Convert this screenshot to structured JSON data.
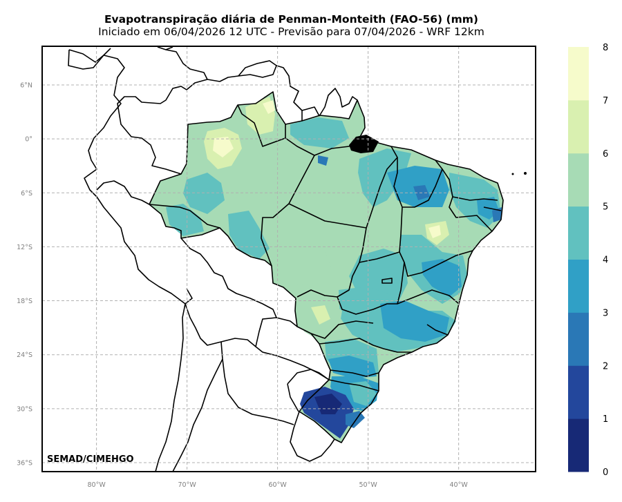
{
  "title": "Evapotranspiração diária de Penman-Monteith (FAO-56) (mm)",
  "subtitle": "Iniciado em 06/04/2026 12 UTC - Previsão para 07/04/2026 - WRF 12km",
  "credit": "SEMAD/CIMEHGO",
  "map": {
    "lon_range": [
      -86,
      -31.5
    ],
    "lat_range": [
      -37,
      10.3
    ],
    "lon_ticks": [
      {
        "value": -80,
        "label": "80°W"
      },
      {
        "value": -70,
        "label": "70°W"
      },
      {
        "value": -60,
        "label": "60°W"
      },
      {
        "value": -50,
        "label": "50°W"
      },
      {
        "value": -40,
        "label": "40°W"
      }
    ],
    "lat_ticks": [
      {
        "value": 6,
        "label": "6°N"
      },
      {
        "value": 0,
        "label": "0°"
      },
      {
        "value": -6,
        "label": "6°S"
      },
      {
        "value": -12,
        "label": "12°S"
      },
      {
        "value": -18,
        "label": "18°S"
      },
      {
        "value": -24,
        "label": "24°S"
      },
      {
        "value": -30,
        "label": "30°S"
      },
      {
        "value": -36,
        "label": "36°S"
      }
    ],
    "gridlines": true
  },
  "colorbar": {
    "levels": [
      0,
      1,
      2,
      3,
      4,
      5,
      6,
      7,
      8
    ],
    "labels": [
      "0",
      "1",
      "2",
      "3",
      "4",
      "5",
      "6",
      "7",
      "8"
    ],
    "colors": [
      "#172976",
      "#23479c",
      "#2a78b6",
      "#30a0c6",
      "#61c1bf",
      "#a7dbb5",
      "#d9f0b0",
      "#f6fbcb"
    ]
  }
}
